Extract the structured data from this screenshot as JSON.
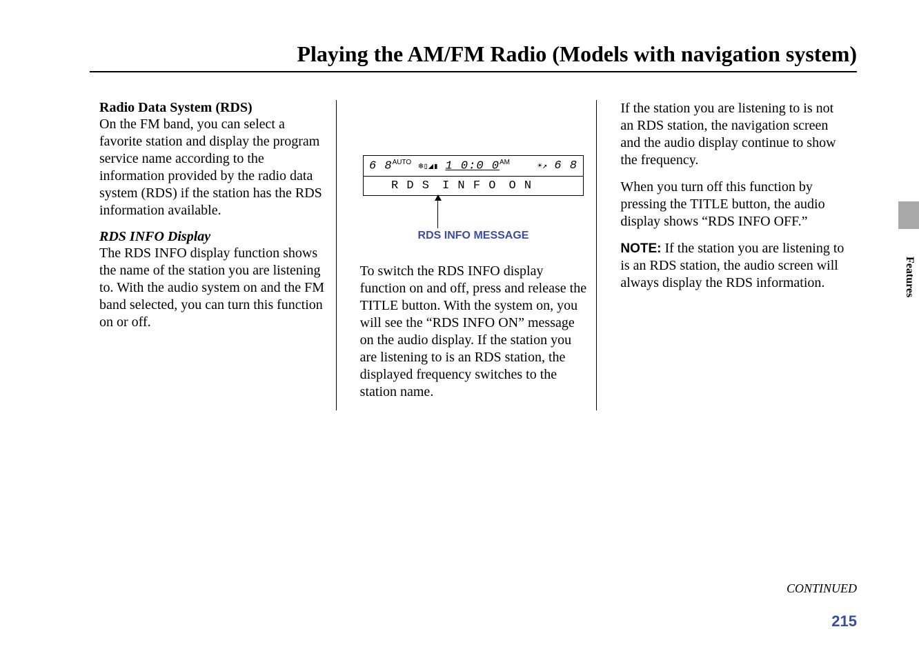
{
  "header": {
    "title": "Playing the AM/FM Radio (Models with navigation system)"
  },
  "col1": {
    "heading": "Radio Data System (RDS)",
    "p1": "On the FM band, you can select a favorite station and display the program service name according to the information provided by the radio data system (RDS) if the station has the RDS information available.",
    "subheading": "RDS INFO Display",
    "p2": "The RDS INFO display function shows the name of the station you are listening to. With the audio system on and the FM band selected, you can turn this function on or off."
  },
  "display": {
    "left_num": "6 8",
    "auto": "AUTO",
    "icons": "❄▯◢▮",
    "time": "1 0:0 0",
    "am": "AM",
    "temp_icon": "☀↗",
    "right_num": "6 8",
    "row2_rds": "R D S",
    "row2_info": "I N F O",
    "row2_on": "O N",
    "caption": "RDS INFO MESSAGE"
  },
  "col2": {
    "p1": "To switch the RDS INFO display function on and off, press and release the TITLE button. With the system on, you will see the “RDS INFO ON” message on the audio display. If the station you are listening to is an RDS station, the displayed frequency switches to the station name."
  },
  "col3": {
    "p1": "If the station you are listening to is not an RDS station, the navigation screen and the audio display continue to show the frequency.",
    "p2": "When you turn off this function by pressing the TITLE button, the audio display shows “RDS INFO OFF.”",
    "note_label": "NOTE:",
    "note_text": " If the station you are listening to is an RDS station, the audio screen will always display the RDS information."
  },
  "footer": {
    "continued": "CONTINUED",
    "page_number": "215",
    "tab": "Features"
  },
  "colors": {
    "accent": "#3b4ca5",
    "gray_tab": "#a9a9a9",
    "text": "#000000",
    "bg": "#ffffff"
  }
}
